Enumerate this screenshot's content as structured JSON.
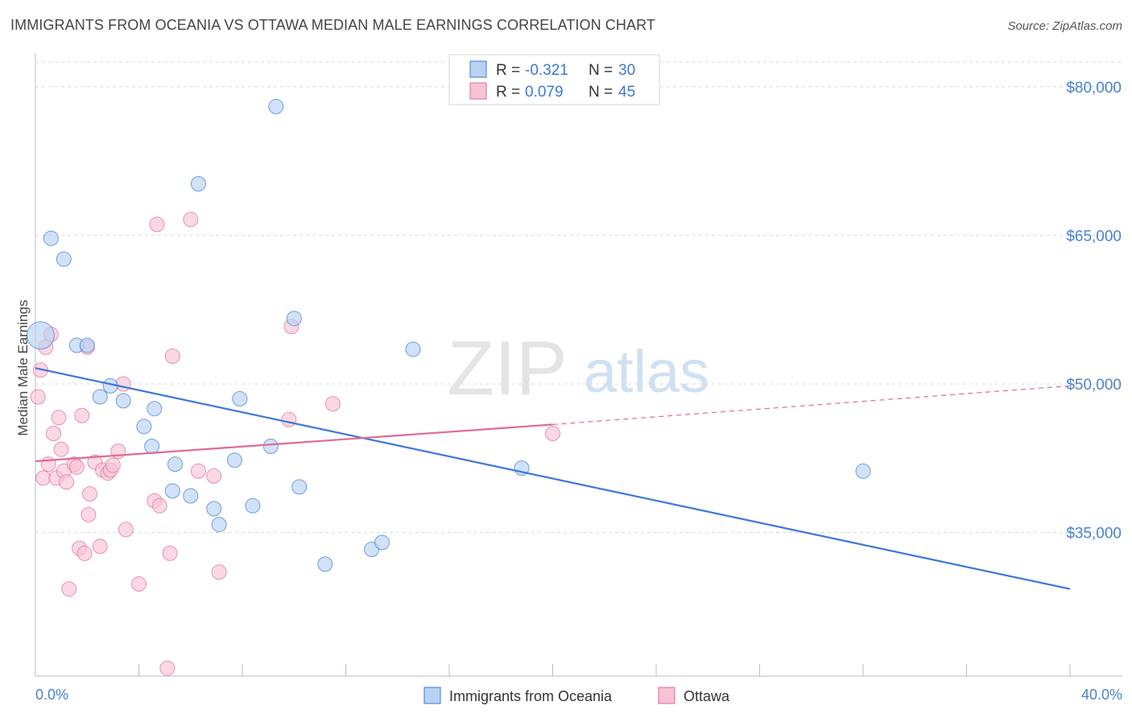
{
  "title": "IMMIGRANTS FROM OCEANIA VS OTTAWA MEDIAN MALE EARNINGS CORRELATION CHART",
  "source": "Source: ZipAtlas.com",
  "watermark": {
    "zip": "ZIP",
    "atlas": "atlas"
  },
  "colors": {
    "blue": "#3a78d6",
    "blue_fill": "#b8d2f3",
    "pink": "#e06a94",
    "pink_fill": "#f7c3d5",
    "axis_label": "#4a82d0",
    "grid": "#d9d9d9"
  },
  "legend_top": {
    "rows": [
      {
        "r_label": "R =",
        "r_value": "-0.321",
        "n_label": "N =",
        "n_value": "30"
      },
      {
        "r_label": "R =",
        "r_value": "0.079",
        "n_label": "N =",
        "n_value": "45"
      }
    ]
  },
  "chart_data": {
    "type": "scatter",
    "title": "IMMIGRANTS FROM OCEANIA VS OTTAWA MEDIAN MALE EARNINGS CORRELATION CHART",
    "xlabel": "",
    "ylabel": "Median Male Earnings",
    "xlim": [
      0,
      40
    ],
    "ylim": [
      20500,
      82500
    ],
    "x_tick_labels": [
      "0.0%",
      "40.0%"
    ],
    "y_ticks": [
      35000,
      50000,
      65000,
      80000
    ],
    "y_tick_labels": [
      "$35,000",
      "$50,000",
      "$65,000",
      "$80,000"
    ],
    "grid": true,
    "legend_position": "bottom-center",
    "series": [
      {
        "name": "Immigrants from Oceania",
        "color": "#3a78d6",
        "points": [
          [
            0.2,
            54900
          ],
          [
            0.6,
            64700
          ],
          [
            1.1,
            62600
          ],
          [
            1.6,
            53900
          ],
          [
            2.0,
            53900
          ],
          [
            2.5,
            48700
          ],
          [
            2.9,
            49800
          ],
          [
            3.4,
            48300
          ],
          [
            4.2,
            45700
          ],
          [
            4.5,
            43700
          ],
          [
            4.6,
            47500
          ],
          [
            5.3,
            39200
          ],
          [
            5.4,
            41900
          ],
          [
            6.0,
            38700
          ],
          [
            6.3,
            70200
          ],
          [
            6.9,
            37400
          ],
          [
            7.1,
            35800
          ],
          [
            7.7,
            42300
          ],
          [
            7.9,
            48500
          ],
          [
            8.4,
            37700
          ],
          [
            9.1,
            43700
          ],
          [
            9.3,
            78000
          ],
          [
            10.0,
            56600
          ],
          [
            10.2,
            39600
          ],
          [
            11.2,
            31800
          ],
          [
            13.0,
            33300
          ],
          [
            13.4,
            34000
          ],
          [
            14.6,
            53500
          ],
          [
            18.8,
            41500
          ],
          [
            32.0,
            41200
          ]
        ]
      },
      {
        "name": "Ottawa",
        "color": "#e06a94",
        "points": [
          [
            0.1,
            48700
          ],
          [
            0.2,
            51400
          ],
          [
            0.3,
            40500
          ],
          [
            0.4,
            53700
          ],
          [
            0.5,
            41900
          ],
          [
            0.6,
            55000
          ],
          [
            0.7,
            45000
          ],
          [
            0.8,
            40500
          ],
          [
            0.9,
            46600
          ],
          [
            1.0,
            43400
          ],
          [
            1.1,
            41200
          ],
          [
            1.2,
            40100
          ],
          [
            1.3,
            29300
          ],
          [
            1.5,
            41900
          ],
          [
            1.6,
            41600
          ],
          [
            1.7,
            33400
          ],
          [
            1.8,
            46800
          ],
          [
            1.9,
            32900
          ],
          [
            2.0,
            53700
          ],
          [
            2.05,
            36800
          ],
          [
            2.1,
            38900
          ],
          [
            2.3,
            42100
          ],
          [
            2.5,
            33600
          ],
          [
            2.6,
            41300
          ],
          [
            2.8,
            41000
          ],
          [
            2.9,
            41300
          ],
          [
            3.0,
            41800
          ],
          [
            3.2,
            43200
          ],
          [
            3.4,
            50000
          ],
          [
            3.5,
            35300
          ],
          [
            4.0,
            29800
          ],
          [
            4.6,
            38200
          ],
          [
            4.7,
            66100
          ],
          [
            4.8,
            37700
          ],
          [
            5.1,
            21300
          ],
          [
            5.2,
            32900
          ],
          [
            5.3,
            52800
          ],
          [
            6.0,
            66600
          ],
          [
            6.3,
            41200
          ],
          [
            6.9,
            40700
          ],
          [
            7.1,
            31000
          ],
          [
            9.8,
            46400
          ],
          [
            9.9,
            55800
          ],
          [
            11.5,
            48000
          ],
          [
            20.0,
            45000
          ]
        ]
      }
    ],
    "trendlines": [
      {
        "series": "Immigrants from Oceania",
        "x": [
          0,
          40
        ],
        "y": [
          51600,
          29300
        ],
        "style": "solid"
      },
      {
        "series": "Ottawa",
        "x": [
          0,
          20
        ],
        "y": [
          42200,
          45900
        ],
        "style": "solid"
      },
      {
        "series": "Ottawa",
        "x": [
          20,
          40
        ],
        "y": [
          45900,
          49800
        ],
        "style": "dashed"
      }
    ]
  }
}
